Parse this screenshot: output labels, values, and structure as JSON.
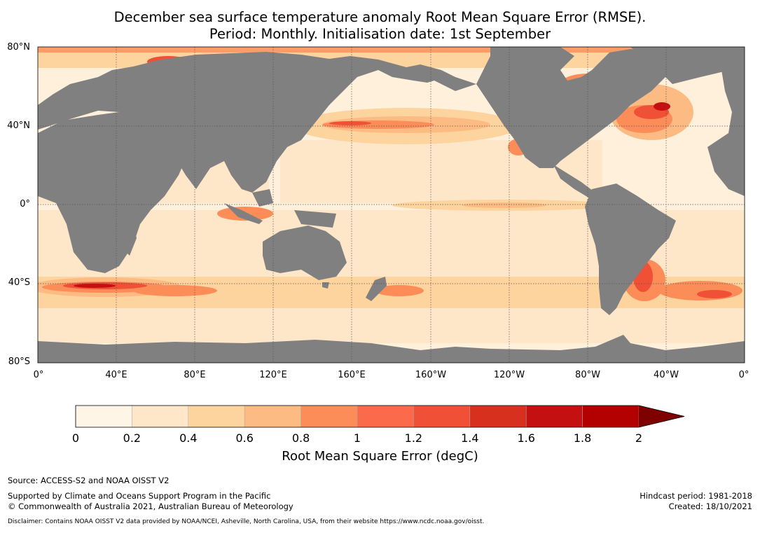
{
  "title": {
    "line1": "December sea surface temperature anomaly Root Mean Square Error (RMSE).",
    "line2": "Period: Monthly. Initialisation date: 1st September"
  },
  "map": {
    "ocean_base_color": "#fff0dc",
    "land_color": "#808080",
    "lat_labels": [
      "80°N",
      "40°N",
      "0°",
      "40°S",
      "80°S"
    ],
    "lon_labels": [
      "0°",
      "40°E",
      "80°E",
      "120°E",
      "160°E",
      "160°W",
      "120°W",
      "80°W",
      "40°W",
      "0°"
    ]
  },
  "colorbar": {
    "title": "Root Mean Square Error (degC)",
    "ticks": [
      "0",
      "0.2",
      "0.4",
      "0.6",
      "0.8",
      "1",
      "1.2",
      "1.4",
      "1.6",
      "1.8",
      "2"
    ],
    "colors": [
      "#fff5e6",
      "#fee6c9",
      "#fdd49e",
      "#fdbb84",
      "#fc8d59",
      "#fb6a4a",
      "#ef5036",
      "#d7301f",
      "#c41010",
      "#b30000",
      "#7f0000"
    ],
    "extend": "max"
  },
  "footer": {
    "source": "Source: ACCESS-S2 and NOAA OISST V2",
    "support_line1": "Supported by Climate and Oceans Support Program in the Pacific",
    "support_line2": "© Commonwealth of Australia 2021, Australian Bureau of Meteorology",
    "hindcast": "Hindcast period: 1981-2018",
    "created": "Created: 18/10/2021",
    "disclaimer": "Disclaimer: Contains NOAA OISST V2 data provided by NOAA/NCEI, Asheville, North Carolina, USA, from their website https://www.ncdc.noaa.gov/oisst."
  }
}
